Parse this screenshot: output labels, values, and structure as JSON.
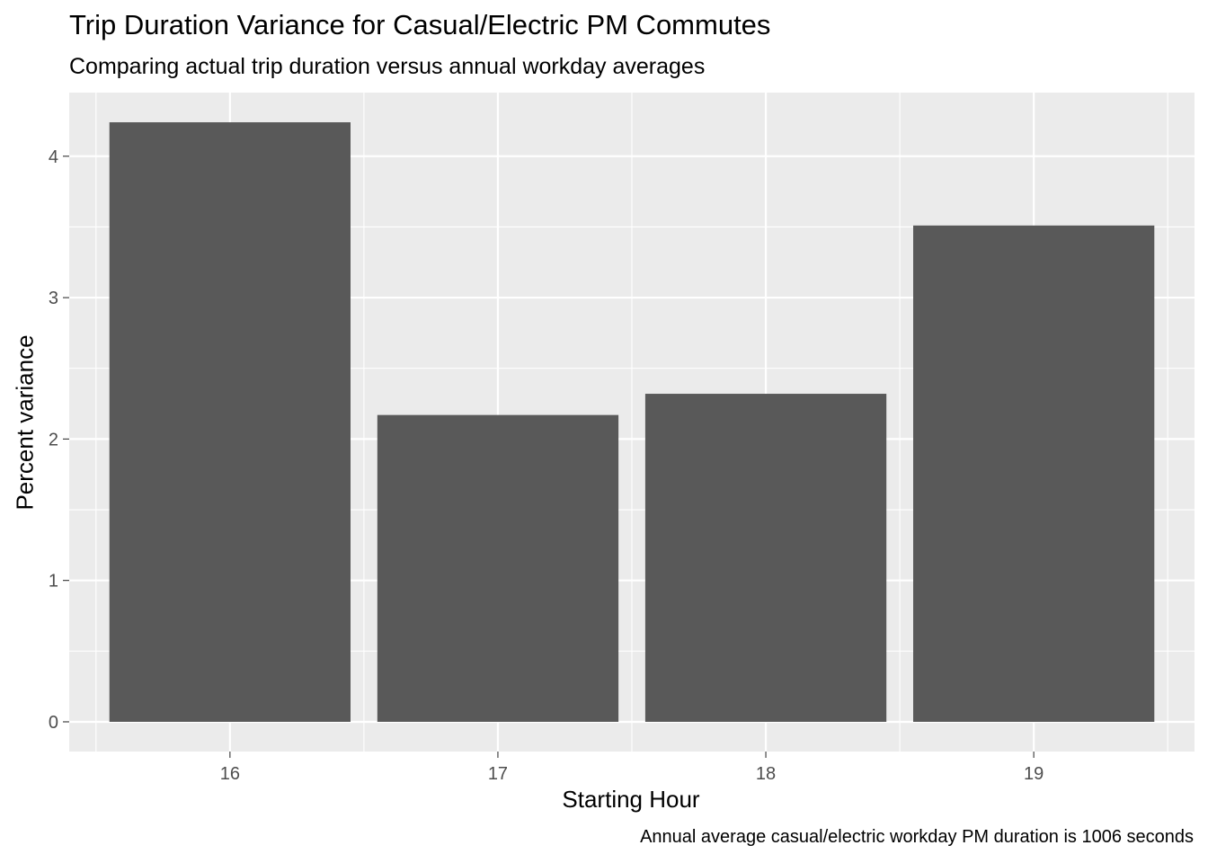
{
  "colors": {
    "panel_background": "#EBEBEB",
    "grid_line": "#FFFFFF",
    "bar_fill": "#595959",
    "tick_mark": "#333333",
    "tick_text": "#4D4D4D"
  },
  "chart_data": {
    "type": "bar",
    "title": "Trip Duration Variance for Casual/Electric PM Commutes",
    "subtitle": "Comparing actual trip duration versus annual workday averages",
    "xlabel": "Starting Hour",
    "ylabel": "Percent variance",
    "caption": "Annual average casual/electric workday PM duration is 1006 seconds",
    "categories": [
      "16",
      "17",
      "18",
      "19"
    ],
    "values": [
      4.24,
      2.17,
      2.32,
      3.51
    ],
    "yticks": [
      0,
      1,
      2,
      3,
      4
    ],
    "ylim": [
      -0.21,
      4.45
    ],
    "grid": true,
    "legend": "none"
  }
}
